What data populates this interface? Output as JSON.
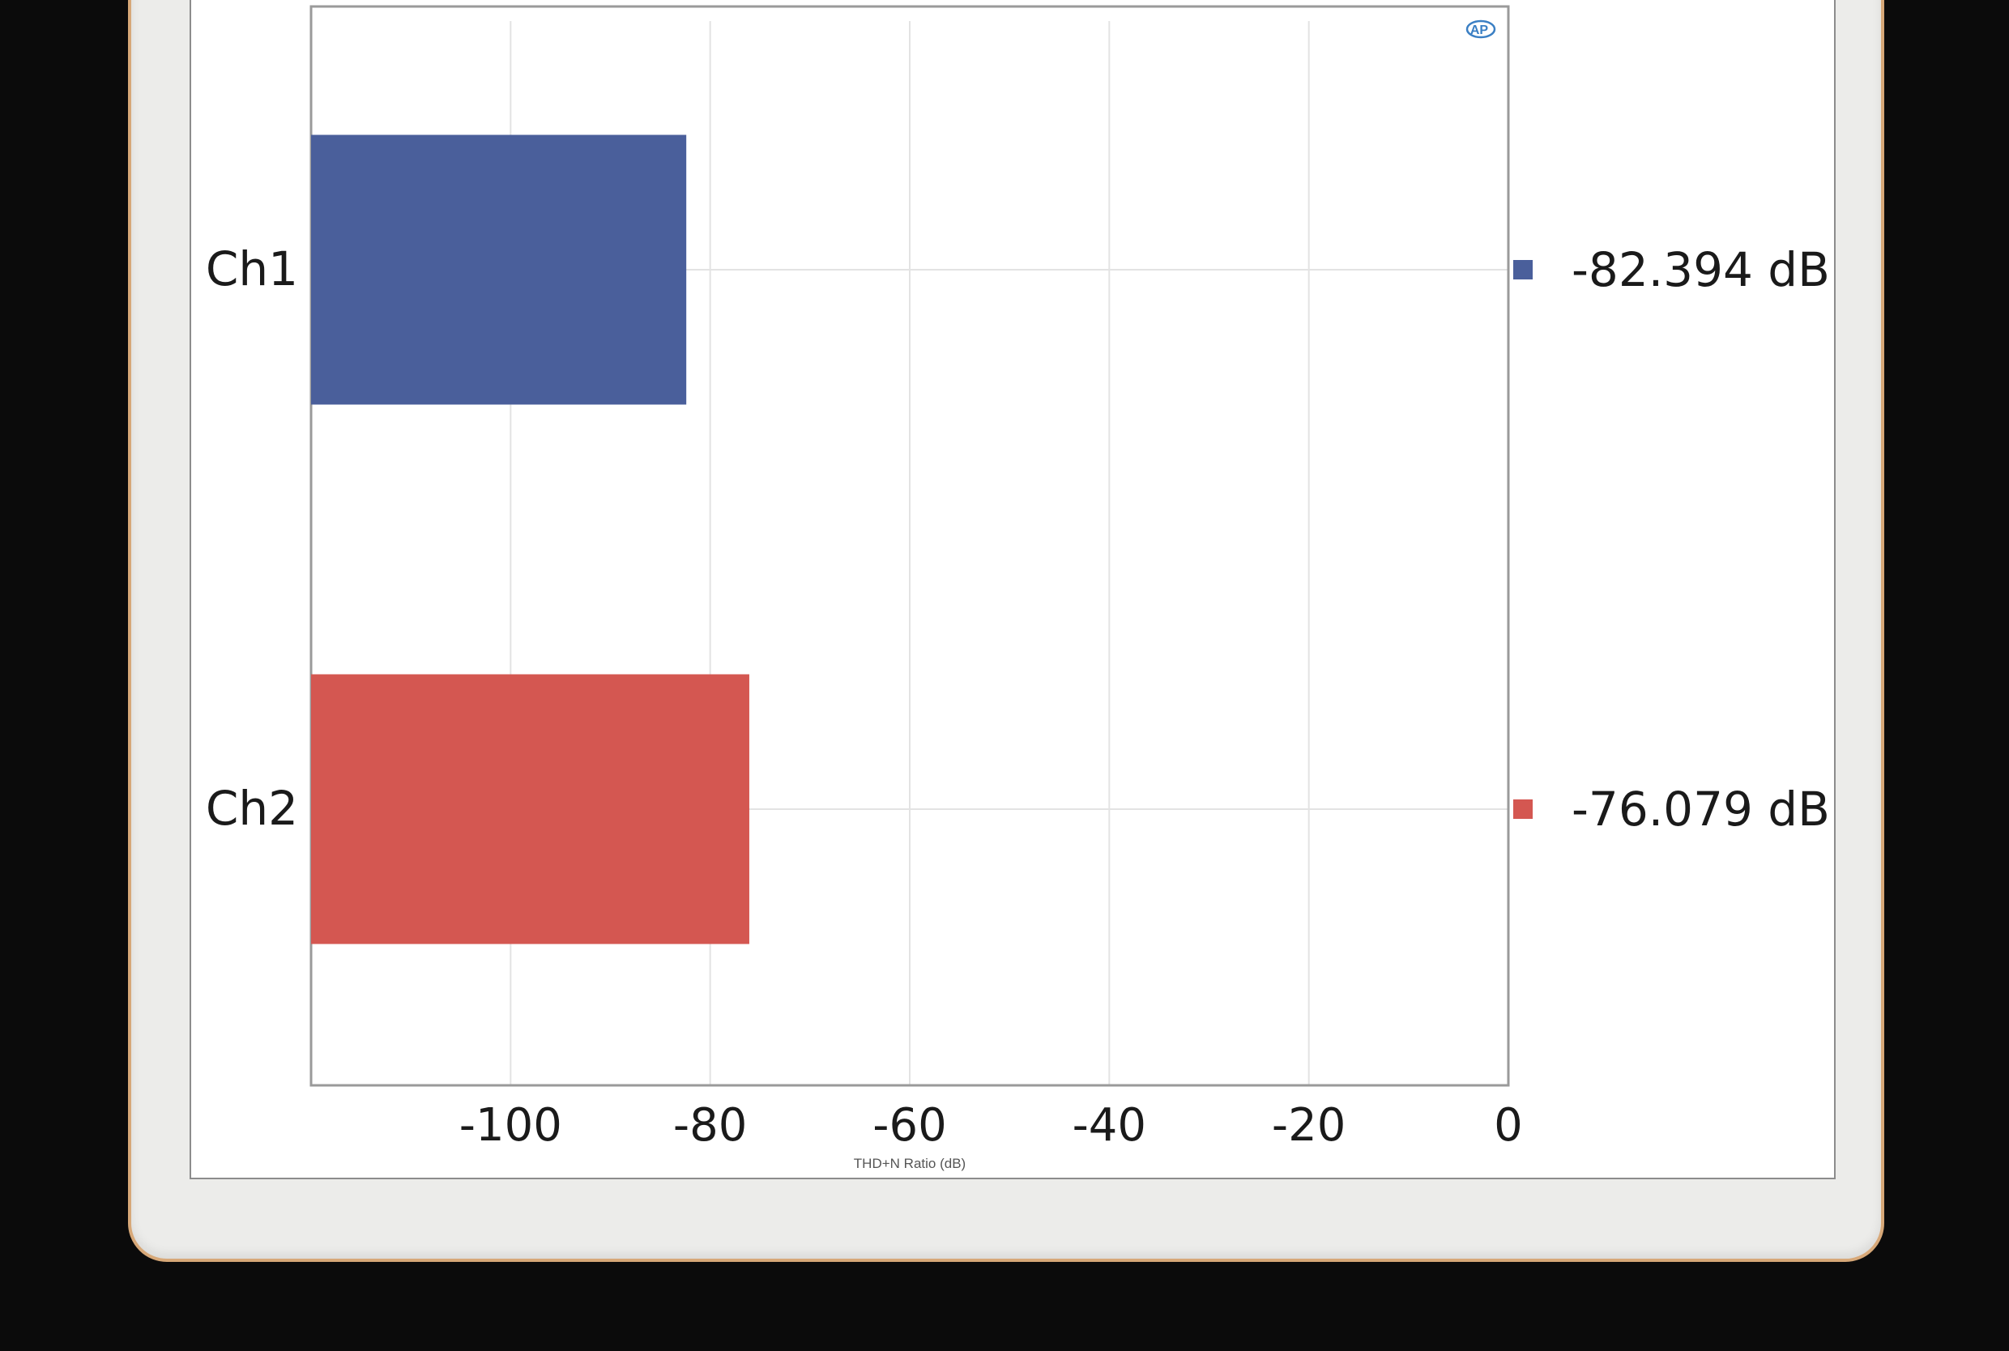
{
  "chart_data": {
    "type": "bar",
    "orientation": "horizontal",
    "categories": [
      "Ch1",
      "Ch2"
    ],
    "values": [
      -82.394,
      -76.079
    ],
    "value_labels": [
      "-82.394 dB",
      "-76.079 dB"
    ],
    "colors": [
      "#4a5f9b",
      "#d45751"
    ],
    "xlabel": "THD+N Ratio (dB)",
    "xticks": [
      -100,
      -80,
      -60,
      -40,
      -20,
      0
    ],
    "xtick_labels": [
      "-100",
      "-80",
      "-60",
      "-40",
      "-20",
      "0"
    ],
    "xlim": [
      -120,
      0
    ],
    "grid": true,
    "legend_placement": "right"
  },
  "logo": {
    "icon": "ap-logo-icon",
    "text": "AP",
    "color": "#3a7fc4"
  },
  "colors": {
    "background": "#0b0b0b",
    "frame": "#ececea",
    "frame_border": "#d7a878",
    "gridline": "#e3e3e3"
  }
}
